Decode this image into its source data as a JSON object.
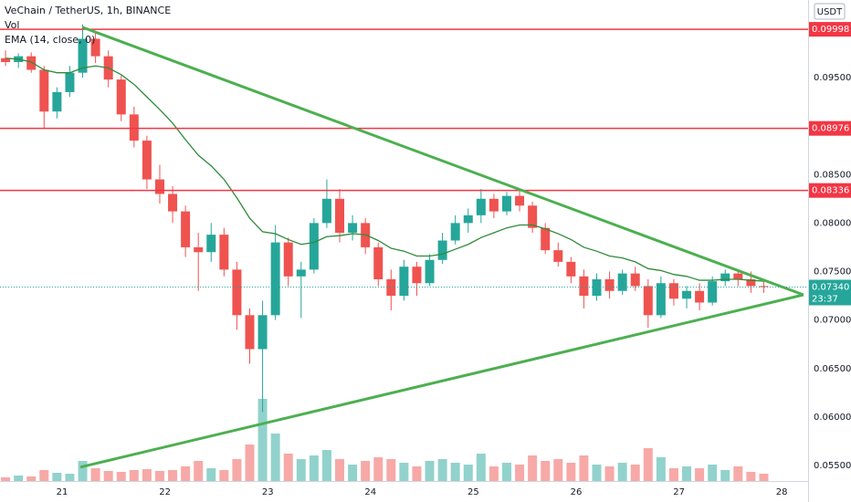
{
  "chart_data": {
    "type": "candlestick",
    "title": "VeChain / TetherUS, 1h, BINANCE",
    "volume_label": "Vol",
    "ema_label": "EMA (14, close, 0)",
    "currency": "USDT",
    "up_color": "#26a69a",
    "down_color": "#ef5350",
    "xlim": [
      20.396,
      28.256
    ],
    "xticks": [
      21,
      22,
      23,
      24,
      25,
      26,
      27,
      28
    ],
    "ylim": [
      0.0534,
      0.103
    ],
    "yticks": [
      {
        "value": 0.095,
        "label": "0.09500"
      },
      {
        "value": 0.09,
        "label": "0.09000"
      },
      {
        "value": 0.085,
        "label": "0.08500"
      },
      {
        "value": 0.08,
        "label": "0.08000"
      },
      {
        "value": 0.075,
        "label": "0.07500"
      },
      {
        "value": 0.07,
        "label": "0.07000"
      },
      {
        "value": 0.065,
        "label": "0.06500"
      },
      {
        "value": 0.06,
        "label": "0.06000"
      },
      {
        "value": 0.055,
        "label": "0.05500"
      }
    ],
    "grid": true,
    "volume_ylim": [
      0,
      500
    ],
    "x": [
      20.45,
      20.575,
      20.7,
      20.825,
      20.95,
      21.075,
      21.2,
      21.325,
      21.45,
      21.575,
      21.7,
      21.825,
      21.95,
      22.075,
      22.2,
      22.325,
      22.45,
      22.575,
      22.7,
      22.825,
      22.95,
      23.075,
      23.2,
      23.325,
      23.45,
      23.575,
      23.7,
      23.825,
      23.95,
      24.075,
      24.2,
      24.325,
      24.45,
      24.575,
      24.7,
      24.825,
      24.95,
      25.075,
      25.2,
      25.325,
      25.45,
      25.575,
      25.7,
      25.825,
      25.95,
      26.075,
      26.2,
      26.325,
      26.45,
      26.575,
      26.7,
      26.825,
      26.95,
      27.075,
      27.2,
      27.325,
      27.45,
      27.575,
      27.7,
      27.825
    ],
    "open": [
      0.097,
      0.0966,
      0.0972,
      0.0958,
      0.0915,
      0.0935,
      0.0955,
      0.099,
      0.0972,
      0.0948,
      0.0912,
      0.0885,
      0.0845,
      0.083,
      0.0812,
      0.0775,
      0.077,
      0.0788,
      0.0752,
      0.0705,
      0.067,
      0.0705,
      0.078,
      0.0745,
      0.0752,
      0.08,
      0.0825,
      0.079,
      0.08,
      0.0775,
      0.0742,
      0.0725,
      0.0755,
      0.0738,
      0.0762,
      0.0782,
      0.08,
      0.0808,
      0.0825,
      0.0812,
      0.0828,
      0.0818,
      0.0795,
      0.0772,
      0.076,
      0.0745,
      0.0725,
      0.0742,
      0.073,
      0.0748,
      0.0735,
      0.0705,
      0.0738,
      0.0722,
      0.073,
      0.0718,
      0.074,
      0.0748,
      0.0742,
      0.0735
    ],
    "high": [
      0.0978,
      0.0975,
      0.0976,
      0.0962,
      0.094,
      0.0962,
      0.1005,
      0.0998,
      0.0978,
      0.0952,
      0.092,
      0.089,
      0.086,
      0.0838,
      0.0818,
      0.079,
      0.08,
      0.0795,
      0.076,
      0.0712,
      0.072,
      0.0798,
      0.0785,
      0.076,
      0.0805,
      0.0845,
      0.0835,
      0.0808,
      0.0805,
      0.078,
      0.0752,
      0.0762,
      0.076,
      0.0768,
      0.079,
      0.0808,
      0.0815,
      0.0835,
      0.083,
      0.0832,
      0.0835,
      0.0822,
      0.08,
      0.078,
      0.0765,
      0.0752,
      0.0748,
      0.075,
      0.0752,
      0.0755,
      0.0742,
      0.0745,
      0.0742,
      0.0735,
      0.0738,
      0.0745,
      0.0752,
      0.0752,
      0.075,
      0.0742
    ],
    "low": [
      0.0962,
      0.096,
      0.0955,
      0.0898,
      0.0908,
      0.093,
      0.095,
      0.0965,
      0.094,
      0.0905,
      0.0878,
      0.0835,
      0.082,
      0.08,
      0.0765,
      0.073,
      0.076,
      0.0745,
      0.069,
      0.0655,
      0.0605,
      0.07,
      0.0735,
      0.0702,
      0.0748,
      0.0795,
      0.078,
      0.0782,
      0.0768,
      0.0735,
      0.071,
      0.072,
      0.0725,
      0.0735,
      0.0758,
      0.0778,
      0.079,
      0.08,
      0.0805,
      0.0808,
      0.0812,
      0.079,
      0.0768,
      0.0755,
      0.0738,
      0.0712,
      0.072,
      0.0722,
      0.0726,
      0.073,
      0.0692,
      0.0702,
      0.0715,
      0.0712,
      0.071,
      0.0715,
      0.0735,
      0.0735,
      0.0728,
      0.0728
    ],
    "close": [
      0.0966,
      0.0972,
      0.0958,
      0.0915,
      0.0935,
      0.0955,
      0.099,
      0.0972,
      0.0948,
      0.0912,
      0.0885,
      0.0845,
      0.083,
      0.0812,
      0.0775,
      0.077,
      0.0788,
      0.0752,
      0.0705,
      0.067,
      0.0705,
      0.078,
      0.0745,
      0.0752,
      0.08,
      0.0825,
      0.079,
      0.08,
      0.0775,
      0.0742,
      0.0725,
      0.0755,
      0.0738,
      0.0762,
      0.0782,
      0.08,
      0.0808,
      0.0825,
      0.0812,
      0.0828,
      0.0818,
      0.0795,
      0.0772,
      0.076,
      0.0745,
      0.0725,
      0.0742,
      0.073,
      0.0748,
      0.0735,
      0.0705,
      0.0738,
      0.0722,
      0.073,
      0.0718,
      0.074,
      0.0748,
      0.0742,
      0.0735,
      0.0734
    ],
    "volume": [
      20,
      30,
      25,
      60,
      45,
      40,
      110,
      70,
      55,
      50,
      60,
      65,
      55,
      60,
      80,
      110,
      70,
      60,
      120,
      200,
      450,
      260,
      150,
      120,
      140,
      170,
      120,
      90,
      110,
      130,
      120,
      100,
      80,
      110,
      120,
      100,
      90,
      150,
      80,
      100,
      90,
      140,
      110,
      120,
      100,
      140,
      90,
      80,
      100,
      90,
      180,
      130,
      70,
      80,
      70,
      90,
      60,
      80,
      50,
      40
    ],
    "ema": {
      "color": "#2e8b3a",
      "values": [
        0.097,
        0.0969,
        0.0966,
        0.0958,
        0.0955,
        0.0955,
        0.096,
        0.0962,
        0.096,
        0.0953,
        0.0943,
        0.093,
        0.0917,
        0.0903,
        0.0886,
        0.087,
        0.0859,
        0.0845,
        0.0826,
        0.0805,
        0.0791,
        0.0789,
        0.0783,
        0.0778,
        0.078,
        0.0786,
        0.0787,
        0.0789,
        0.0788,
        0.0782,
        0.0774,
        0.0771,
        0.0766,
        0.0766,
        0.0768,
        0.0773,
        0.0778,
        0.0785,
        0.079,
        0.0795,
        0.0798,
        0.0798,
        0.0794,
        0.0789,
        0.0783,
        0.0775,
        0.0771,
        0.0766,
        0.0764,
        0.076,
        0.0753,
        0.0751,
        0.0747,
        0.0745,
        0.0741,
        0.0741,
        0.0742,
        0.0742,
        0.0741,
        0.074
      ]
    },
    "levels": {
      "color": "#f23645",
      "values": [
        {
          "value": 0.09998,
          "label": "0.09998"
        },
        {
          "value": 0.08976,
          "label": "0.08976"
        },
        {
          "value": 0.08336,
          "label": "0.08336"
        }
      ]
    },
    "last_price": {
      "value": 0.0734,
      "label": "0.07340",
      "countdown": "23:37",
      "color": "#26a69a"
    },
    "trendlines": {
      "color": "#4caf50",
      "lines": [
        {
          "x": [
            21.195,
            28.211
          ],
          "y": [
            0.1002,
            0.0726
          ]
        },
        {
          "x": [
            21.178,
            28.211
          ],
          "y": [
            0.05483,
            0.0726
          ]
        }
      ]
    }
  }
}
